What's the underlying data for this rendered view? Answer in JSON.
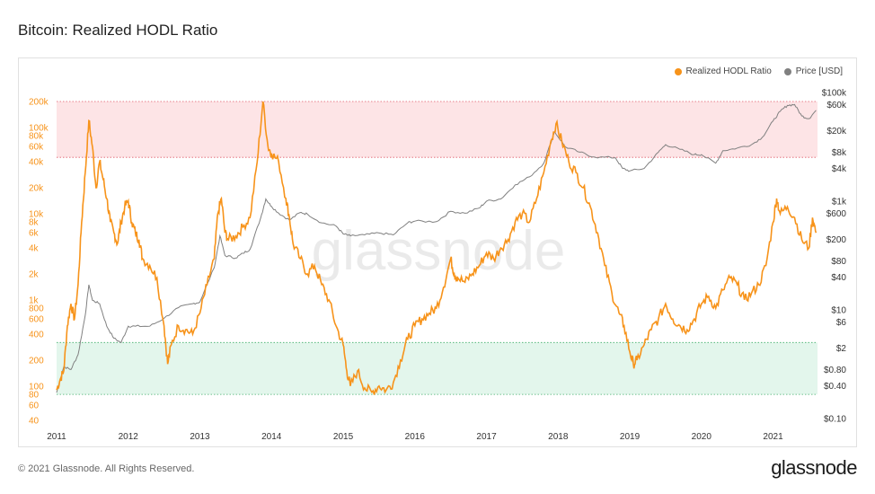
{
  "title": "Bitcoin: Realized HODL Ratio",
  "footer": "© 2021 Glassnode. All Rights Reserved.",
  "brand": "glassnode",
  "watermark": "glassnode",
  "colors": {
    "rhodl": "#f7931a",
    "price": "#808080",
    "top_band": "#fde4e6",
    "bottom_band": "#e3f6ec",
    "top_line": "#e05a6a",
    "bottom_line": "#3fae6a"
  },
  "chart_data": {
    "type": "line",
    "title": "Bitcoin: Realized HODL Ratio",
    "legend_position": "top-right",
    "grid": false,
    "x_range": [
      2011,
      2021.62
    ],
    "x_ticks": [
      "2011",
      "2012",
      "2013",
      "2014",
      "2015",
      "2016",
      "2017",
      "2018",
      "2019",
      "2020",
      "2021"
    ],
    "y_left": {
      "scale": "log",
      "range": [
        40,
        200000
      ],
      "ticks": [
        "200k",
        "100k",
        "80k",
        "60k",
        "40k",
        "20k",
        "10k",
        "8k",
        "6k",
        "4k",
        "2k",
        "1k",
        "800",
        "600",
        "400",
        "200",
        "100",
        "80",
        "60",
        "40"
      ]
    },
    "y_right": {
      "scale": "log",
      "range": [
        0.1,
        100000
      ],
      "ticks": [
        "$100k",
        "$60k",
        "$20k",
        "$8k",
        "$4k",
        "$1k",
        "$600",
        "$200",
        "$80",
        "$40",
        "$10",
        "$6",
        "$2",
        "$0.80",
        "$0.40",
        "$0.10"
      ]
    },
    "bands": [
      {
        "name": "top",
        "from": 45000,
        "to": 200000
      },
      {
        "name": "bottom",
        "from": 80,
        "to": 320
      }
    ],
    "series": [
      {
        "name": "Realized HODL Ratio",
        "axis": "left",
        "points": [
          [
            2011.0,
            90
          ],
          [
            2011.05,
            120
          ],
          [
            2011.1,
            150
          ],
          [
            2011.15,
            500
          ],
          [
            2011.2,
            900
          ],
          [
            2011.25,
            600
          ],
          [
            2011.3,
            1500
          ],
          [
            2011.35,
            8000
          ],
          [
            2011.4,
            30000
          ],
          [
            2011.45,
            120000
          ],
          [
            2011.5,
            60000
          ],
          [
            2011.55,
            20000
          ],
          [
            2011.6,
            40000
          ],
          [
            2011.65,
            25000
          ],
          [
            2011.7,
            15000
          ],
          [
            2011.75,
            8000
          ],
          [
            2011.8,
            6000
          ],
          [
            2011.85,
            4500
          ],
          [
            2011.9,
            8000
          ],
          [
            2011.95,
            12000
          ],
          [
            2012.0,
            14000
          ],
          [
            2012.05,
            8000
          ],
          [
            2012.1,
            6000
          ],
          [
            2012.15,
            5000
          ],
          [
            2012.2,
            3000
          ],
          [
            2012.3,
            2500
          ],
          [
            2012.4,
            1800
          ],
          [
            2012.5,
            500
          ],
          [
            2012.55,
            180
          ],
          [
            2012.6,
            300
          ],
          [
            2012.7,
            500
          ],
          [
            2012.8,
            450
          ],
          [
            2012.9,
            400
          ],
          [
            2013.0,
            700
          ],
          [
            2013.1,
            1500
          ],
          [
            2013.2,
            3000
          ],
          [
            2013.25,
            10000
          ],
          [
            2013.3,
            15000
          ],
          [
            2013.35,
            6000
          ],
          [
            2013.4,
            5000
          ],
          [
            2013.5,
            5500
          ],
          [
            2013.6,
            7000
          ],
          [
            2013.7,
            9000
          ],
          [
            2013.8,
            40000
          ],
          [
            2013.88,
            200000
          ],
          [
            2013.95,
            60000
          ],
          [
            2014.0,
            50000
          ],
          [
            2014.1,
            40000
          ],
          [
            2014.2,
            15000
          ],
          [
            2014.25,
            9000
          ],
          [
            2014.3,
            4500
          ],
          [
            2014.4,
            3000
          ],
          [
            2014.5,
            2000
          ],
          [
            2014.6,
            2500
          ],
          [
            2014.7,
            1500
          ],
          [
            2014.8,
            1000
          ],
          [
            2014.9,
            500
          ],
          [
            2015.0,
            300
          ],
          [
            2015.05,
            150
          ],
          [
            2015.1,
            100
          ],
          [
            2015.2,
            150
          ],
          [
            2015.3,
            95
          ],
          [
            2015.4,
            85
          ],
          [
            2015.5,
            100
          ],
          [
            2015.6,
            90
          ],
          [
            2015.7,
            110
          ],
          [
            2015.8,
            200
          ],
          [
            2015.9,
            350
          ],
          [
            2016.0,
            500
          ],
          [
            2016.1,
            600
          ],
          [
            2016.2,
            700
          ],
          [
            2016.3,
            800
          ],
          [
            2016.4,
            1400
          ],
          [
            2016.5,
            3000
          ],
          [
            2016.55,
            2000
          ],
          [
            2016.6,
            1800
          ],
          [
            2016.7,
            1600
          ],
          [
            2016.8,
            2000
          ],
          [
            2016.9,
            2500
          ],
          [
            2017.0,
            3500
          ],
          [
            2017.1,
            3000
          ],
          [
            2017.2,
            4000
          ],
          [
            2017.3,
            5000
          ],
          [
            2017.4,
            8000
          ],
          [
            2017.5,
            10000
          ],
          [
            2017.6,
            8000
          ],
          [
            2017.7,
            15000
          ],
          [
            2017.8,
            30000
          ],
          [
            2017.9,
            70000
          ],
          [
            2017.97,
            110000
          ],
          [
            2018.05,
            70000
          ],
          [
            2018.15,
            40000
          ],
          [
            2018.25,
            30000
          ],
          [
            2018.35,
            20000
          ],
          [
            2018.45,
            12000
          ],
          [
            2018.55,
            6000
          ],
          [
            2018.65,
            2500
          ],
          [
            2018.75,
            1200
          ],
          [
            2018.85,
            700
          ],
          [
            2018.92,
            500
          ],
          [
            2019.0,
            250
          ],
          [
            2019.05,
            180
          ],
          [
            2019.1,
            200
          ],
          [
            2019.2,
            300
          ],
          [
            2019.3,
            450
          ],
          [
            2019.4,
            600
          ],
          [
            2019.5,
            900
          ],
          [
            2019.6,
            600
          ],
          [
            2019.7,
            500
          ],
          [
            2019.8,
            450
          ],
          [
            2019.9,
            600
          ],
          [
            2020.0,
            900
          ],
          [
            2020.1,
            1100
          ],
          [
            2020.2,
            800
          ],
          [
            2020.3,
            1300
          ],
          [
            2020.4,
            1800
          ],
          [
            2020.5,
            1500
          ],
          [
            2020.6,
            1000
          ],
          [
            2020.7,
            1200
          ],
          [
            2020.8,
            1500
          ],
          [
            2020.9,
            2500
          ],
          [
            2021.0,
            8000
          ],
          [
            2021.05,
            15000
          ],
          [
            2021.1,
            10000
          ],
          [
            2021.2,
            12000
          ],
          [
            2021.3,
            9000
          ],
          [
            2021.4,
            5000
          ],
          [
            2021.5,
            4000
          ],
          [
            2021.55,
            9000
          ],
          [
            2021.6,
            6000
          ]
        ]
      },
      {
        "name": "Price [USD]",
        "axis": "right",
        "points": [
          [
            2011.0,
            0.3
          ],
          [
            2011.1,
            0.9
          ],
          [
            2011.2,
            0.8
          ],
          [
            2011.3,
            1.5
          ],
          [
            2011.4,
            8
          ],
          [
            2011.45,
            29
          ],
          [
            2011.5,
            15
          ],
          [
            2011.6,
            13
          ],
          [
            2011.7,
            5
          ],
          [
            2011.8,
            3
          ],
          [
            2011.9,
            2.5
          ],
          [
            2012.0,
            5
          ],
          [
            2012.1,
            5
          ],
          [
            2012.3,
            5
          ],
          [
            2012.5,
            7
          ],
          [
            2012.7,
            11
          ],
          [
            2012.9,
            13
          ],
          [
            2013.0,
            14
          ],
          [
            2013.2,
            60
          ],
          [
            2013.28,
            230
          ],
          [
            2013.35,
            100
          ],
          [
            2013.5,
            90
          ],
          [
            2013.6,
            110
          ],
          [
            2013.7,
            130
          ],
          [
            2013.85,
            500
          ],
          [
            2013.92,
            1100
          ],
          [
            2014.0,
            800
          ],
          [
            2014.1,
            600
          ],
          [
            2014.25,
            450
          ],
          [
            2014.4,
            620
          ],
          [
            2014.5,
            580
          ],
          [
            2014.7,
            400
          ],
          [
            2014.9,
            350
          ],
          [
            2015.0,
            250
          ],
          [
            2015.1,
            230
          ],
          [
            2015.3,
            240
          ],
          [
            2015.5,
            260
          ],
          [
            2015.7,
            240
          ],
          [
            2015.9,
            400
          ],
          [
            2016.0,
            430
          ],
          [
            2016.3,
            420
          ],
          [
            2016.5,
            650
          ],
          [
            2016.7,
            600
          ],
          [
            2016.9,
            750
          ],
          [
            2017.0,
            1000
          ],
          [
            2017.2,
            1100
          ],
          [
            2017.4,
            2000
          ],
          [
            2017.6,
            2800
          ],
          [
            2017.8,
            5000
          ],
          [
            2017.95,
            19000
          ],
          [
            2018.1,
            10000
          ],
          [
            2018.3,
            8000
          ],
          [
            2018.5,
            6500
          ],
          [
            2018.8,
            6300
          ],
          [
            2018.9,
            4000
          ],
          [
            2019.0,
            3600
          ],
          [
            2019.2,
            4000
          ],
          [
            2019.4,
            8000
          ],
          [
            2019.5,
            11000
          ],
          [
            2019.7,
            9000
          ],
          [
            2019.9,
            7200
          ],
          [
            2020.0,
            7200
          ],
          [
            2020.2,
            5000
          ],
          [
            2020.3,
            8500
          ],
          [
            2020.5,
            9500
          ],
          [
            2020.7,
            11000
          ],
          [
            2020.85,
            15000
          ],
          [
            2021.0,
            30000
          ],
          [
            2021.1,
            45000
          ],
          [
            2021.2,
            58000
          ],
          [
            2021.3,
            60000
          ],
          [
            2021.4,
            37000
          ],
          [
            2021.5,
            33000
          ],
          [
            2021.6,
            47000
          ]
        ]
      }
    ]
  }
}
